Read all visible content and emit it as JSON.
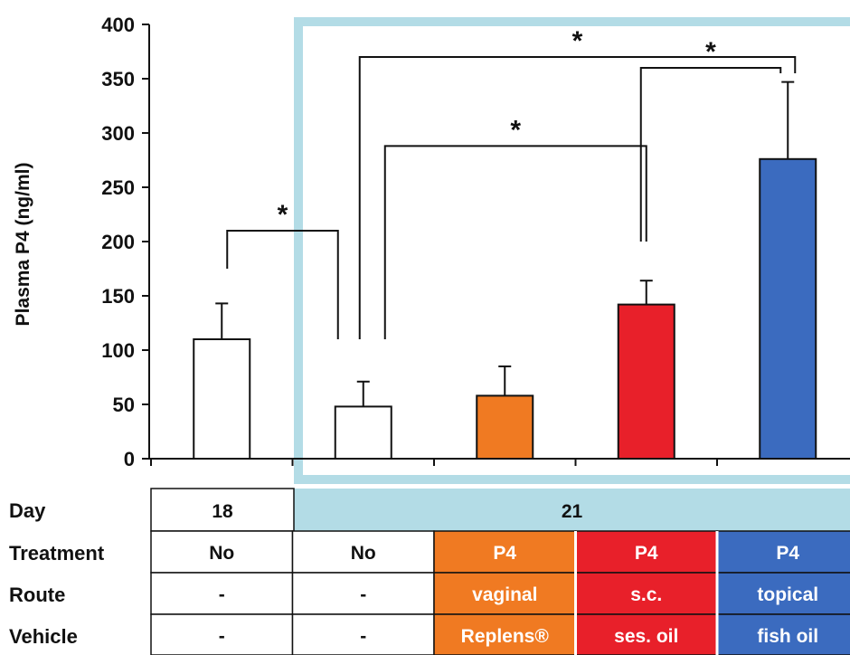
{
  "chart_data": {
    "type": "bar",
    "ylabel": "Plasma P4 (ng/ml)",
    "ylim": [
      0,
      400
    ],
    "yticks": [
      "0",
      "50",
      "100",
      "150",
      "200",
      "250",
      "300",
      "350",
      "400"
    ],
    "bars": [
      {
        "value": 110,
        "error": 33,
        "color": "#ffffff"
      },
      {
        "value": 48,
        "error": 23,
        "color": "#ffffff"
      },
      {
        "value": 58,
        "error": 27,
        "color": "#f07a22"
      },
      {
        "value": 142,
        "error": 22,
        "color": "#e8202a"
      },
      {
        "value": 276,
        "error": 71,
        "color": "#3b6bbf"
      }
    ],
    "significance": [
      {
        "from": 0,
        "to": 1,
        "height": 210,
        "label": "*"
      },
      {
        "from": 1,
        "to": 3,
        "height": 288,
        "label": "*"
      },
      {
        "from": 1,
        "to": 4,
        "height": 370,
        "label": "*"
      },
      {
        "from": 3,
        "to": 4,
        "height": 360,
        "label": "*"
      }
    ],
    "highlight_color": "#b3dce6",
    "table": {
      "day": {
        "label": "Day",
        "groups": [
          {
            "text": "18",
            "span": 1
          },
          {
            "text": "21",
            "span": 4
          }
        ]
      },
      "rows": [
        {
          "label": "Treatment",
          "cells": [
            {
              "text": "No",
              "fill": "#ffffff",
              "color": "#111111"
            },
            {
              "text": "No",
              "fill": "#ffffff",
              "color": "#111111"
            },
            {
              "text": "P4",
              "fill": "#f07a22",
              "color": "#ffffff"
            },
            {
              "text": "P4",
              "fill": "#e8202a",
              "color": "#ffffff"
            },
            {
              "text": "P4",
              "fill": "#3b6bbf",
              "color": "#ffffff"
            }
          ]
        },
        {
          "label": "Route",
          "cells": [
            {
              "text": "-",
              "fill": "#ffffff",
              "color": "#111111"
            },
            {
              "text": "-",
              "fill": "#ffffff",
              "color": "#111111"
            },
            {
              "text": "vaginal",
              "fill": "#f07a22",
              "color": "#ffffff"
            },
            {
              "text": "s.c.",
              "fill": "#e8202a",
              "color": "#ffffff"
            },
            {
              "text": "topical",
              "fill": "#3b6bbf",
              "color": "#ffffff"
            }
          ]
        },
        {
          "label": "Vehicle",
          "cells": [
            {
              "text": "-",
              "fill": "#ffffff",
              "color": "#111111"
            },
            {
              "text": "-",
              "fill": "#ffffff",
              "color": "#111111"
            },
            {
              "text": "Replens®",
              "fill": "#f07a22",
              "color": "#ffffff"
            },
            {
              "text": "ses. oil",
              "fill": "#e8202a",
              "color": "#ffffff"
            },
            {
              "text": "fish oil",
              "fill": "#3b6bbf",
              "color": "#ffffff"
            }
          ]
        }
      ]
    }
  }
}
